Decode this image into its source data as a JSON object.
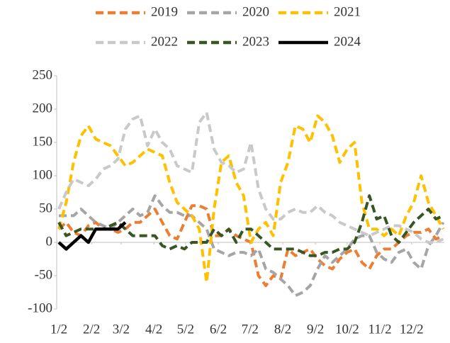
{
  "chart_data": {
    "type": "line",
    "x": [
      0,
      7,
      14,
      21,
      28,
      35,
      42,
      49,
      56,
      63,
      70,
      77,
      84,
      91,
      98,
      105,
      112,
      119,
      126,
      133,
      140,
      147,
      154,
      161,
      168,
      175,
      182,
      189,
      196,
      203,
      210,
      217,
      224,
      231,
      238,
      245,
      252,
      259,
      266,
      273,
      280,
      287,
      294,
      301,
      308,
      315,
      322,
      329,
      336,
      343,
      350,
      357,
      364
    ],
    "xlim": [
      -2,
      365
    ],
    "xticks": [
      {
        "value": 0,
        "label": "1/2"
      },
      {
        "value": 31,
        "label": "2/2"
      },
      {
        "value": 59,
        "label": "3/2"
      },
      {
        "value": 90,
        "label": "4/2"
      },
      {
        "value": 120,
        "label": "5/2"
      },
      {
        "value": 151,
        "label": "6/2"
      },
      {
        "value": 181,
        "label": "7/2"
      },
      {
        "value": 212,
        "label": "8/2"
      },
      {
        "value": 243,
        "label": "9/2"
      },
      {
        "value": 273,
        "label": "10/2"
      },
      {
        "value": 304,
        "label": "11/2"
      },
      {
        "value": 334,
        "label": "12/2"
      }
    ],
    "ylim": [
      -100,
      250
    ],
    "yticks": [
      -100,
      -50,
      0,
      50,
      100,
      150,
      200,
      250
    ],
    "grid": false,
    "legend": "top",
    "series": [
      {
        "name": "2019",
        "color": "#ed7d31",
        "dashed": true,
        "values": [
          20,
          30,
          15,
          10,
          25,
          30,
          20,
          20,
          15,
          20,
          30,
          30,
          40,
          50,
          30,
          10,
          5,
          30,
          55,
          55,
          50,
          10,
          10,
          20,
          10,
          5,
          0,
          -50,
          -65,
          -50,
          -55,
          -10,
          -20,
          -15,
          -10,
          -25,
          -35,
          -40,
          -25,
          -15,
          -10,
          -30,
          -40,
          -20,
          -10,
          -10,
          0,
          10,
          15,
          15,
          20,
          5,
          10
        ]
      },
      {
        "name": "2020",
        "color": "#a5a5a5",
        "dashed": true,
        "values": [
          40,
          40,
          40,
          50,
          40,
          30,
          25,
          20,
          30,
          40,
          50,
          40,
          45,
          70,
          55,
          45,
          45,
          40,
          40,
          30,
          20,
          -10,
          -15,
          -20,
          -15,
          -15,
          -20,
          -10,
          -40,
          -45,
          -55,
          -65,
          -80,
          -75,
          -65,
          -40,
          -20,
          -30,
          -20,
          -10,
          5,
          10,
          10,
          -15,
          -25,
          -30,
          -15,
          -10,
          -30,
          -40,
          -5,
          10,
          30
        ]
      },
      {
        "name": "2021",
        "color": "#ffc000",
        "dashed": true,
        "values": [
          20,
          60,
          120,
          160,
          175,
          155,
          150,
          145,
          130,
          115,
          120,
          130,
          140,
          135,
          130,
          90,
          60,
          50,
          40,
          20,
          -60,
          50,
          120,
          130,
          90,
          70,
          0,
          20,
          30,
          10,
          90,
          120,
          175,
          170,
          150,
          190,
          180,
          160,
          120,
          140,
          150,
          60,
          20,
          20,
          10,
          20,
          10,
          40,
          60,
          100,
          60,
          40,
          20
        ]
      },
      {
        "name": "2022",
        "color": "#c9c9c9",
        "dashed": true,
        "values": [
          50,
          75,
          95,
          90,
          85,
          95,
          110,
          115,
          125,
          170,
          185,
          190,
          145,
          170,
          150,
          140,
          115,
          110,
          105,
          180,
          195,
          140,
          120,
          115,
          105,
          110,
          150,
          80,
          50,
          35,
          35,
          45,
          50,
          45,
          45,
          55,
          45,
          40,
          30,
          25,
          20,
          15,
          10,
          15,
          20,
          25,
          25,
          20,
          15,
          5,
          0,
          0,
          5
        ]
      },
      {
        "name": "2023",
        "color": "#375623",
        "dashed": true,
        "values": [
          30,
          10,
          15,
          20,
          20,
          20,
          20,
          25,
          30,
          20,
          10,
          10,
          10,
          10,
          -5,
          -10,
          -5,
          -10,
          0,
          0,
          0,
          20,
          10,
          20,
          0,
          20,
          20,
          10,
          0,
          -10,
          -10,
          -10,
          -10,
          -15,
          -20,
          -20,
          -15,
          -15,
          -10,
          -10,
          0,
          30,
          70,
          35,
          40,
          10,
          0,
          15,
          30,
          40,
          50,
          35,
          40
        ]
      },
      {
        "name": "2024",
        "color": "#000000",
        "dashed": false,
        "values": [
          0,
          -10,
          0,
          10,
          0,
          20,
          20,
          20,
          20,
          30,
          null,
          null,
          null,
          null,
          null,
          null,
          null,
          null,
          null,
          null,
          null,
          null,
          null,
          null,
          null,
          null,
          null,
          null,
          null,
          null,
          null,
          null,
          null,
          null,
          null,
          null,
          null,
          null,
          null,
          null,
          null,
          null,
          null,
          null,
          null,
          null,
          null,
          null,
          null,
          null,
          null,
          null,
          null
        ]
      }
    ]
  }
}
